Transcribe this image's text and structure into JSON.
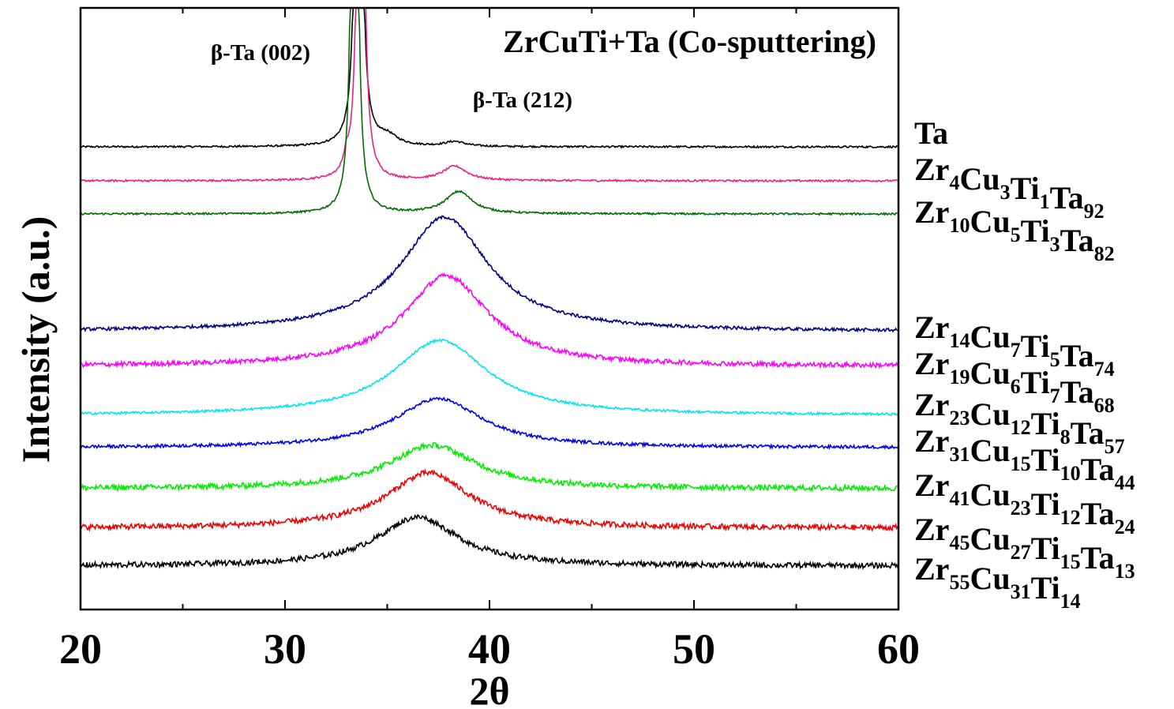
{
  "chart_data": {
    "type": "line",
    "title": "ZrCuTi+Ta (Co-sputtering)",
    "xlabel": "2θ",
    "ylabel": "Intensity (a.u.)",
    "xlim": [
      20,
      60
    ],
    "xticks": [
      "20",
      "30",
      "40",
      "50",
      "60"
    ],
    "yticks": [],
    "grid": false,
    "annotations": [
      {
        "text": "β-Ta (002)",
        "x": 33.6
      },
      {
        "text": "β-Ta (212)",
        "x": 38.3
      }
    ],
    "series": [
      {
        "name": "Ta",
        "parts": [
          [
            "Ta",
            ""
          ]
        ],
        "color": "#000000",
        "baseline": 0.0,
        "peaks": [
          {
            "x": 33.6,
            "h": 12.0,
            "w": 0.12
          },
          {
            "x": 35.0,
            "h": 0.12,
            "w": 0.6
          },
          {
            "x": 38.3,
            "h": 0.06,
            "w": 0.6
          }
        ],
        "noise": 0.012
      },
      {
        "name": "Zr4Cu3Ti1Ta92",
        "parts": [
          [
            "Zr",
            "4"
          ],
          [
            "Cu",
            "3"
          ],
          [
            "Ti",
            "1"
          ],
          [
            "Ta",
            "92"
          ]
        ],
        "color": "#e8237e",
        "baseline": 0.0,
        "peaks": [
          {
            "x": 33.7,
            "h": 12.0,
            "w": 0.12
          },
          {
            "x": 33.0,
            "h": 0.18,
            "w": 0.15
          },
          {
            "x": 38.3,
            "h": 0.18,
            "w": 0.7
          }
        ],
        "noise": 0.012
      },
      {
        "name": "Zr10Cu5Ti3Ta82",
        "parts": [
          [
            "Zr",
            "10"
          ],
          [
            "Cu",
            "5"
          ],
          [
            "Ti",
            "3"
          ],
          [
            "Ta",
            "82"
          ]
        ],
        "color": "#006b00",
        "baseline": 0.0,
        "peaks": [
          {
            "x": 33.4,
            "h": 12.0,
            "w": 0.12
          },
          {
            "x": 38.5,
            "h": 0.28,
            "w": 0.8
          }
        ],
        "noise": 0.012
      },
      {
        "name": "Zr14Cu7Ti5Ta74",
        "parts": [
          [
            "Zr",
            "14"
          ],
          [
            "Cu",
            "7"
          ],
          [
            "Ti",
            "5"
          ],
          [
            "Ta",
            "74"
          ]
        ],
        "color": "#000080",
        "baseline": 0.0,
        "peaks": [
          {
            "x": 37.8,
            "h": 1.45,
            "w": 2.6
          }
        ],
        "noise": 0.02
      },
      {
        "name": "Zr19Cu6Ti7Ta68",
        "parts": [
          [
            "Zr",
            "19"
          ],
          [
            "Cu",
            "6"
          ],
          [
            "Ti",
            "7"
          ],
          [
            "Ta",
            "68"
          ]
        ],
        "color": "#ff00ff",
        "baseline": 0.0,
        "peaks": [
          {
            "x": 37.9,
            "h": 1.15,
            "w": 2.5
          }
        ],
        "noise": 0.03
      },
      {
        "name": "Zr23Cu12Ti8Ta57",
        "parts": [
          [
            "Zr",
            "23"
          ],
          [
            "Cu",
            "12"
          ],
          [
            "Ti",
            "8"
          ],
          [
            "Ta",
            "57"
          ]
        ],
        "color": "#00e5ee",
        "baseline": 0.0,
        "peaks": [
          {
            "x": 37.6,
            "h": 0.95,
            "w": 2.8
          }
        ],
        "noise": 0.015
      },
      {
        "name": "Zr31Cu15Ti10Ta44",
        "parts": [
          [
            "Zr",
            "31"
          ],
          [
            "Cu",
            "15"
          ],
          [
            "Ti",
            "10"
          ],
          [
            "Ta",
            "44"
          ]
        ],
        "color": "#0000ee",
        "baseline": 0.0,
        "peaks": [
          {
            "x": 37.5,
            "h": 0.62,
            "w": 2.6
          }
        ],
        "noise": 0.02
      },
      {
        "name": "Zr41Cu23Ti12Ta24",
        "parts": [
          [
            "Zr",
            "41"
          ],
          [
            "Cu",
            "23"
          ],
          [
            "Ti",
            "12"
          ],
          [
            "Ta",
            "24"
          ]
        ],
        "color": "#00ee00",
        "baseline": 0.0,
        "peaks": [
          {
            "x": 37.2,
            "h": 0.55,
            "w": 2.6
          }
        ],
        "noise": 0.035
      },
      {
        "name": "Zr45Cu27Ti15Ta13",
        "parts": [
          [
            "Zr",
            "45"
          ],
          [
            "Cu",
            "27"
          ],
          [
            "Ti",
            "15"
          ],
          [
            "Ta",
            "13"
          ]
        ],
        "color": "#ee0000",
        "baseline": 0.0,
        "peaks": [
          {
            "x": 37.0,
            "h": 0.7,
            "w": 2.5
          }
        ],
        "noise": 0.035
      },
      {
        "name": "Zr55Cu31Ti14",
        "parts": [
          [
            "Zr",
            "55"
          ],
          [
            "Cu",
            "31"
          ],
          [
            "Ti",
            "14"
          ]
        ],
        "color": "#000000",
        "baseline": 0.0,
        "peaks": [
          {
            "x": 36.5,
            "h": 0.62,
            "w": 2.4
          }
        ],
        "noise": 0.035
      }
    ]
  }
}
